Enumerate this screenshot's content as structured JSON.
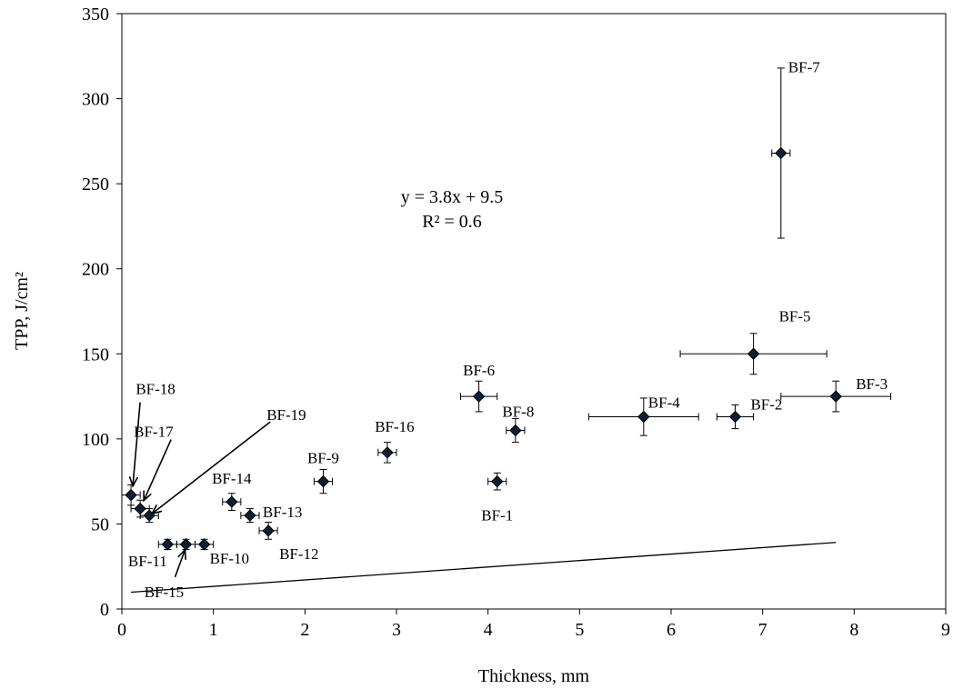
{
  "chart_data": {
    "type": "scatter",
    "xlabel": "Thickness, mm",
    "ylabel": "TPP, J/cm²",
    "xlim": [
      0,
      9
    ],
    "ylim": [
      0,
      350
    ],
    "xticks": [
      0,
      1,
      2,
      3,
      4,
      5,
      6,
      7,
      8,
      9
    ],
    "yticks": [
      0,
      50,
      100,
      150,
      200,
      250,
      300,
      350
    ],
    "grid": false,
    "legend": "none",
    "points": [
      {
        "label": "BF-1",
        "x": 4.1,
        "y": 75,
        "xerr": 0.1,
        "yerr": 5
      },
      {
        "label": "BF-2",
        "x": 6.7,
        "y": 113,
        "xerr": 0.2,
        "yerr": 7
      },
      {
        "label": "BF-3",
        "x": 7.8,
        "y": 125,
        "xerr": 0.6,
        "yerr": 9
      },
      {
        "label": "BF-4",
        "x": 5.7,
        "y": 113,
        "xerr": 0.6,
        "yerr": 11
      },
      {
        "label": "BF-5",
        "x": 6.9,
        "y": 150,
        "xerr": 0.8,
        "yerr": 12
      },
      {
        "label": "BF-6",
        "x": 3.9,
        "y": 125,
        "xerr": 0.2,
        "yerr": 9
      },
      {
        "label": "BF-7",
        "x": 7.2,
        "y": 268,
        "xerr": 0.1,
        "yerr": 50
      },
      {
        "label": "BF-8",
        "x": 4.3,
        "y": 105,
        "xerr": 0.1,
        "yerr": 7
      },
      {
        "label": "BF-9",
        "x": 2.2,
        "y": 75,
        "xerr": 0.1,
        "yerr": 7
      },
      {
        "label": "BF-10",
        "x": 0.9,
        "y": 38,
        "xerr": 0.1,
        "yerr": 3
      },
      {
        "label": "BF-11",
        "x": 0.5,
        "y": 38,
        "xerr": 0.1,
        "yerr": 3
      },
      {
        "label": "BF-12",
        "x": 1.6,
        "y": 46,
        "xerr": 0.1,
        "yerr": 5
      },
      {
        "label": "BF-13",
        "x": 1.4,
        "y": 55,
        "xerr": 0.1,
        "yerr": 4
      },
      {
        "label": "BF-14",
        "x": 1.2,
        "y": 63,
        "xerr": 0.1,
        "yerr": 5
      },
      {
        "label": "BF-15",
        "x": 0.7,
        "y": 38,
        "xerr": 0.1,
        "yerr": 3
      },
      {
        "label": "BF-16",
        "x": 2.9,
        "y": 92,
        "xerr": 0.1,
        "yerr": 6
      },
      {
        "label": "BF-17",
        "x": 0.2,
        "y": 59,
        "xerr": 0.1,
        "yerr": 5
      },
      {
        "label": "BF-18",
        "x": 0.1,
        "y": 67,
        "xerr": 0.1,
        "yerr": 6
      },
      {
        "label": "BF-19",
        "x": 0.3,
        "y": 55,
        "xerr": 0.1,
        "yerr": 4
      }
    ],
    "trendline": {
      "type": "linear",
      "slope": 3.8,
      "intercept": 9.5,
      "x_range": [
        0.1,
        7.8
      ],
      "equation_text": "y = 3.8x + 9.5",
      "r2_text": "R² = 0.6"
    },
    "marker_color": "#0d1f33",
    "line_color": "#000000"
  }
}
